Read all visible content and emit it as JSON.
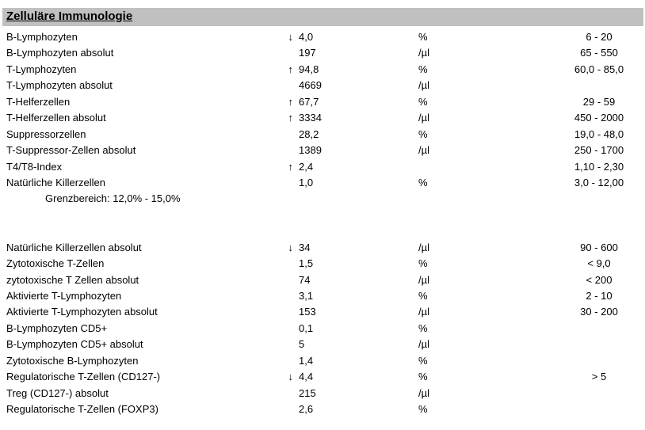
{
  "header": {
    "title": "Zelluläre Immunologie"
  },
  "colors": {
    "header_bg": "#c0c0c0",
    "text": "#000000",
    "page_bg": "#ffffff"
  },
  "table": {
    "flag_glyphs": {
      "up": "↑",
      "down": "↓"
    },
    "rows": [
      {
        "type": "result",
        "name": "B-Lymphozyten",
        "flag": "down",
        "value": "4,0",
        "unit": "%",
        "reference": "6 - 20"
      },
      {
        "type": "result",
        "name": "B-Lymphozyten absolut",
        "flag": "",
        "value": "197",
        "unit": "/µl",
        "reference": "65 - 550"
      },
      {
        "type": "result",
        "name": "T-Lymphozyten",
        "flag": "up",
        "value": "94,8",
        "unit": "%",
        "reference": "60,0 - 85,0"
      },
      {
        "type": "result",
        "name": "T-Lymphozyten absolut",
        "flag": "",
        "value": "4669",
        "unit": "/µl",
        "reference": ""
      },
      {
        "type": "result",
        "name": "T-Helferzellen",
        "flag": "up",
        "value": "67,7",
        "unit": "%",
        "reference": "29 - 59"
      },
      {
        "type": "result",
        "name": "T-Helferzellen absolut",
        "flag": "up",
        "value": "3334",
        "unit": "/µl",
        "reference": "450 - 2000"
      },
      {
        "type": "result",
        "name": "Suppressorzellen",
        "flag": "",
        "value": "28,2",
        "unit": "%",
        "reference": "19,0 - 48,0"
      },
      {
        "type": "result",
        "name": "T-Suppressor-Zellen absolut",
        "flag": "",
        "value": "1389",
        "unit": "/µl",
        "reference": "250 - 1700"
      },
      {
        "type": "result",
        "name": "T4/T8-Index",
        "flag": "up",
        "value": "2,4",
        "unit": "",
        "reference": "1,10 - 2,30"
      },
      {
        "type": "result",
        "name": "Natürliche Killerzellen",
        "flag": "",
        "value": "1,0",
        "unit": "%",
        "reference": "3,0 - 12,00"
      },
      {
        "type": "note",
        "text": "Grenzbereich: 12,0% - 15,0%"
      },
      {
        "type": "blank"
      },
      {
        "type": "blank"
      },
      {
        "type": "result",
        "name": "Natürliche Killerzellen absolut",
        "flag": "down",
        "value": "34",
        "unit": "/µl",
        "reference": "90 - 600"
      },
      {
        "type": "result",
        "name": "Zytotoxische T-Zellen",
        "flag": "",
        "value": "1,5",
        "unit": "%",
        "reference": "< 9,0"
      },
      {
        "type": "result",
        "name": "zytotoxische T Zellen absolut",
        "flag": "",
        "value": "74",
        "unit": "/µl",
        "reference": "< 200"
      },
      {
        "type": "result",
        "name": "Aktivierte T-Lymphozyten",
        "flag": "",
        "value": "3,1",
        "unit": "%",
        "reference": "2 - 10"
      },
      {
        "type": "result",
        "name": "Aktivierte T-Lymphozyten absolut",
        "flag": "",
        "value": "153",
        "unit": "/µl",
        "reference": "30 - 200"
      },
      {
        "type": "result",
        "name": "B-Lymphozyten CD5+",
        "flag": "",
        "value": "0,1",
        "unit": "%",
        "reference": ""
      },
      {
        "type": "result",
        "name": "B-Lymphozyten CD5+ absolut",
        "flag": "",
        "value": "5",
        "unit": "/µl",
        "reference": ""
      },
      {
        "type": "result",
        "name": "Zytotoxische B-Lymphozyten",
        "flag": "",
        "value": "1,4",
        "unit": "%",
        "reference": ""
      },
      {
        "type": "result",
        "name": "Regulatorische T-Zellen (CD127-)",
        "flag": "down",
        "value": "4,4",
        "unit": "%",
        "reference": "> 5"
      },
      {
        "type": "result",
        "name": "Treg (CD127-) absolut",
        "flag": "",
        "value": "215",
        "unit": "/µl",
        "reference": ""
      },
      {
        "type": "result",
        "name": "Regulatorische T-Zellen (FOXP3)",
        "flag": "",
        "value": "2,6",
        "unit": "%",
        "reference": ""
      }
    ]
  }
}
